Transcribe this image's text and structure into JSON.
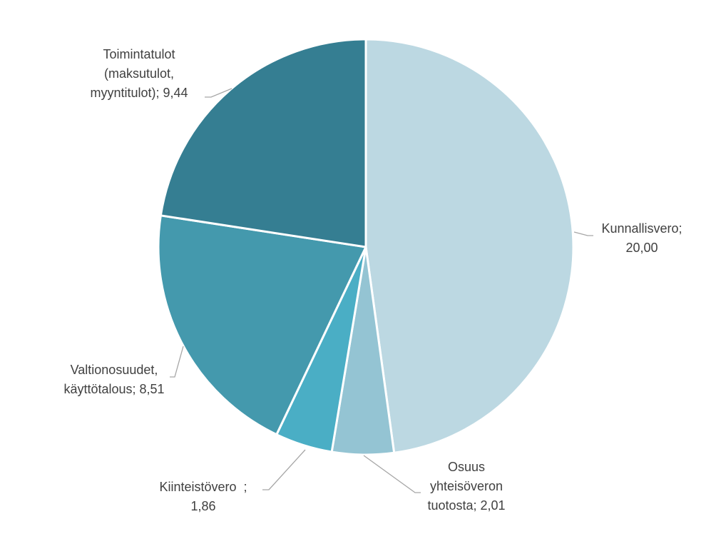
{
  "chart_data": {
    "type": "pie",
    "title": "",
    "slices": [
      {
        "name": "Kunnallisvero",
        "value": 20.0,
        "value_label": "20,00",
        "color": "#bcd8e2",
        "label_lines": [
          "Kunnallisvero;",
          "20,00"
        ]
      },
      {
        "name": "Osuus yhteisöveron tuotosta",
        "value": 2.01,
        "value_label": "2,01",
        "color": "#94c4d3",
        "label_lines": [
          "Osuus",
          "yhteisöveron",
          "tuotosta; 2,01"
        ]
      },
      {
        "name": "Kiinteistövero",
        "value": 1.86,
        "value_label": "1,86",
        "color": "#4aaec5",
        "label_lines": [
          "Kiinteistövero  ;",
          "1,86"
        ]
      },
      {
        "name": "Valtionosuudet, käyttötalous",
        "value": 8.51,
        "value_label": "8,51",
        "color": "#4499ad",
        "label_lines": [
          "Valtionosuudet,",
          "käyttötalous; 8,51"
        ]
      },
      {
        "name": "Toimintatulot (maksutulot, myyntitulot)",
        "value": 9.44,
        "value_label": "9,44",
        "color": "#357e92",
        "label_lines": [
          "Toimintatulot",
          "(maksutulot,",
          "myyntitulot); 9,44"
        ]
      }
    ],
    "start_angle": "12 o'clock",
    "direction": "clockwise",
    "legend": "none"
  }
}
